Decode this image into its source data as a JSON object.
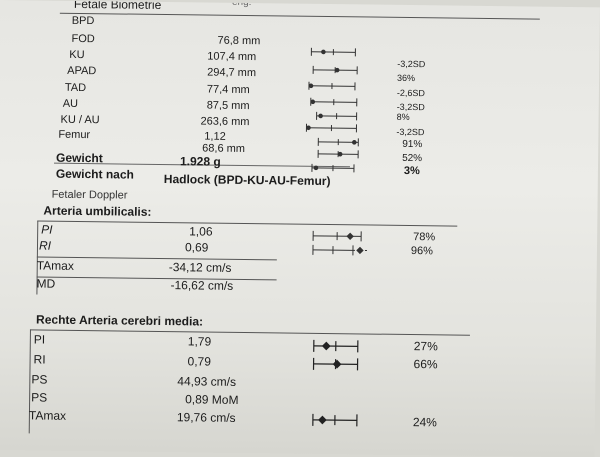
{
  "header_fragment": "eng.",
  "biometrie": {
    "title": "Fetale Biometrie",
    "rows": [
      {
        "label": "BPD",
        "value": "",
        "sd": ""
      },
      {
        "label": "FOD",
        "value": "76,8 mm",
        "sd": ""
      },
      {
        "label": "KU",
        "value": "107,4 mm",
        "sd": "-3,2SD"
      },
      {
        "label": "APAD",
        "value": "294,7 mm",
        "sd": "36%"
      },
      {
        "label": "TAD",
        "value": "77,4 mm",
        "sd": "-2,6SD"
      },
      {
        "label": "AU",
        "value": "87,5 mm",
        "sd": "-3,2SD"
      },
      {
        "label": "KU / AU",
        "value": "263,6 mm",
        "sd": "8%"
      },
      {
        "label": "Femur",
        "value": "1,12",
        "sd": "-3,2SD"
      },
      {
        "label": "",
        "value": "68,6 mm",
        "sd": "91%"
      }
    ],
    "extra_sd": "52%",
    "gewicht": {
      "label": "Gewicht",
      "value": "1.928 g",
      "pct": "3%"
    },
    "gewicht_nach": {
      "label": "Gewicht nach",
      "value": "Hadlock (BPD-KU-AU-Femur)"
    }
  },
  "doppler": {
    "title": "Fetaler Doppler",
    "subtitle": "Arteria umbilicalis:",
    "rows": [
      {
        "label": "PI",
        "value": "1,06",
        "pct": "78%"
      },
      {
        "label": "RI",
        "value": "0,69",
        "pct": "96%"
      },
      {
        "label": "TAmax",
        "value": "-34,12 cm/s",
        "pct": ""
      },
      {
        "label": "MD",
        "value": "-16,62 cm/s",
        "pct": ""
      }
    ]
  },
  "acm": {
    "title": "Rechte Arteria cerebri media:",
    "rows": [
      {
        "label": "PI",
        "value": "1,79",
        "pct": "27%"
      },
      {
        "label": "RI",
        "value": "0,79",
        "pct": "66%"
      },
      {
        "label": "PS",
        "value": "44,93 cm/s",
        "pct": ""
      },
      {
        "label": "PS",
        "value": "0,89 MoM",
        "pct": ""
      },
      {
        "label": "TAmax",
        "value": "19,76 cm/s",
        "pct": "24%"
      }
    ]
  }
}
